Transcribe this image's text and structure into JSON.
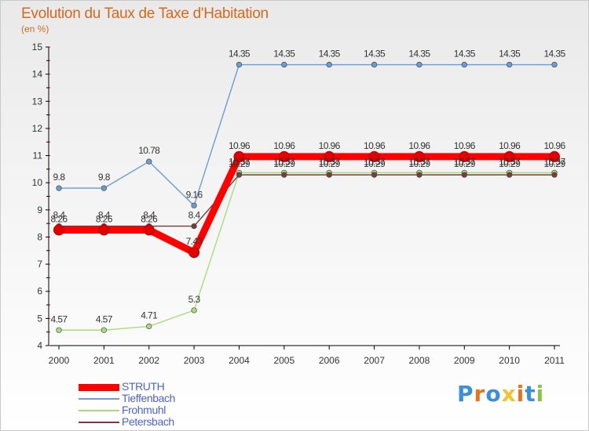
{
  "title": "Evolution du Taux de Taxe d'Habitation",
  "subtitle": "(en %)",
  "logo": [
    "P",
    "r",
    "o",
    "x",
    "i",
    "t",
    "i"
  ],
  "logo_colors": [
    "#3b8fd6",
    "#e8731d",
    "#3b8fd6",
    "#f1c232",
    "#e8731d",
    "#3b8fd6",
    "#8bc34a"
  ],
  "chart_data": {
    "type": "line",
    "x": [
      "2000",
      "2001",
      "2002",
      "2003",
      "2004",
      "2005",
      "2006",
      "2007",
      "2008",
      "2009",
      "2010",
      "2011"
    ],
    "ylim": [
      4,
      15
    ],
    "yticks": [
      4,
      5,
      6,
      7,
      8,
      9,
      10,
      11,
      12,
      13,
      14,
      15
    ],
    "ytick_labels": [
      "4",
      "5",
      "6",
      "7",
      "8",
      "9",
      "10",
      "11",
      "12",
      "13",
      "14",
      "15"
    ],
    "grid": false,
    "series": [
      {
        "name": "STRUTH",
        "color": "#ff0000",
        "emphasis": true,
        "values": [
          8.26,
          8.26,
          8.26,
          7.43,
          10.96,
          10.96,
          10.96,
          10.96,
          10.96,
          10.96,
          10.96,
          10.96
        ],
        "labels": [
          "8.26",
          "8.26",
          "8.26",
          "7.43",
          "10.96",
          "10.96",
          "10.96",
          "10.96",
          "10.96",
          "10.96",
          "10.96",
          "10.96"
        ]
      },
      {
        "name": "Tieffenbach",
        "color": "#6b9dd3",
        "values": [
          9.8,
          9.8,
          10.78,
          9.16,
          14.35,
          14.35,
          14.35,
          14.35,
          14.35,
          14.35,
          14.35,
          14.35
        ],
        "labels": [
          "9.8",
          "9.8",
          "10.78",
          "9.16",
          "14.35",
          "14.35",
          "14.35",
          "14.35",
          "14.35",
          "14.35",
          "14.35",
          "14.35"
        ]
      },
      {
        "name": "Frohmuhl",
        "color": "#a8dd7c",
        "values": [
          4.57,
          4.57,
          4.71,
          5.3,
          10.37,
          10.37,
          10.37,
          10.37,
          10.37,
          10.37,
          10.37,
          10.37
        ],
        "labels": [
          "4.57",
          "4.57",
          "4.71",
          "5.3",
          "10.37",
          "10.37",
          "10.37",
          "10.37",
          "10.37",
          "10.37",
          "10.37",
          "10.37"
        ]
      },
      {
        "name": "Petersbach",
        "color": "#7a3b3b",
        "values": [
          8.4,
          8.4,
          8.4,
          8.4,
          10.29,
          10.29,
          10.29,
          10.29,
          10.29,
          10.29,
          10.29,
          10.29
        ],
        "labels": [
          "8.4",
          "8.4",
          "8.4",
          "8.4",
          "10.29",
          "10.29",
          "10.29",
          "10.29",
          "10.29",
          "10.29",
          "10.29",
          "10.29"
        ]
      }
    ],
    "legend": "bottom-left"
  }
}
